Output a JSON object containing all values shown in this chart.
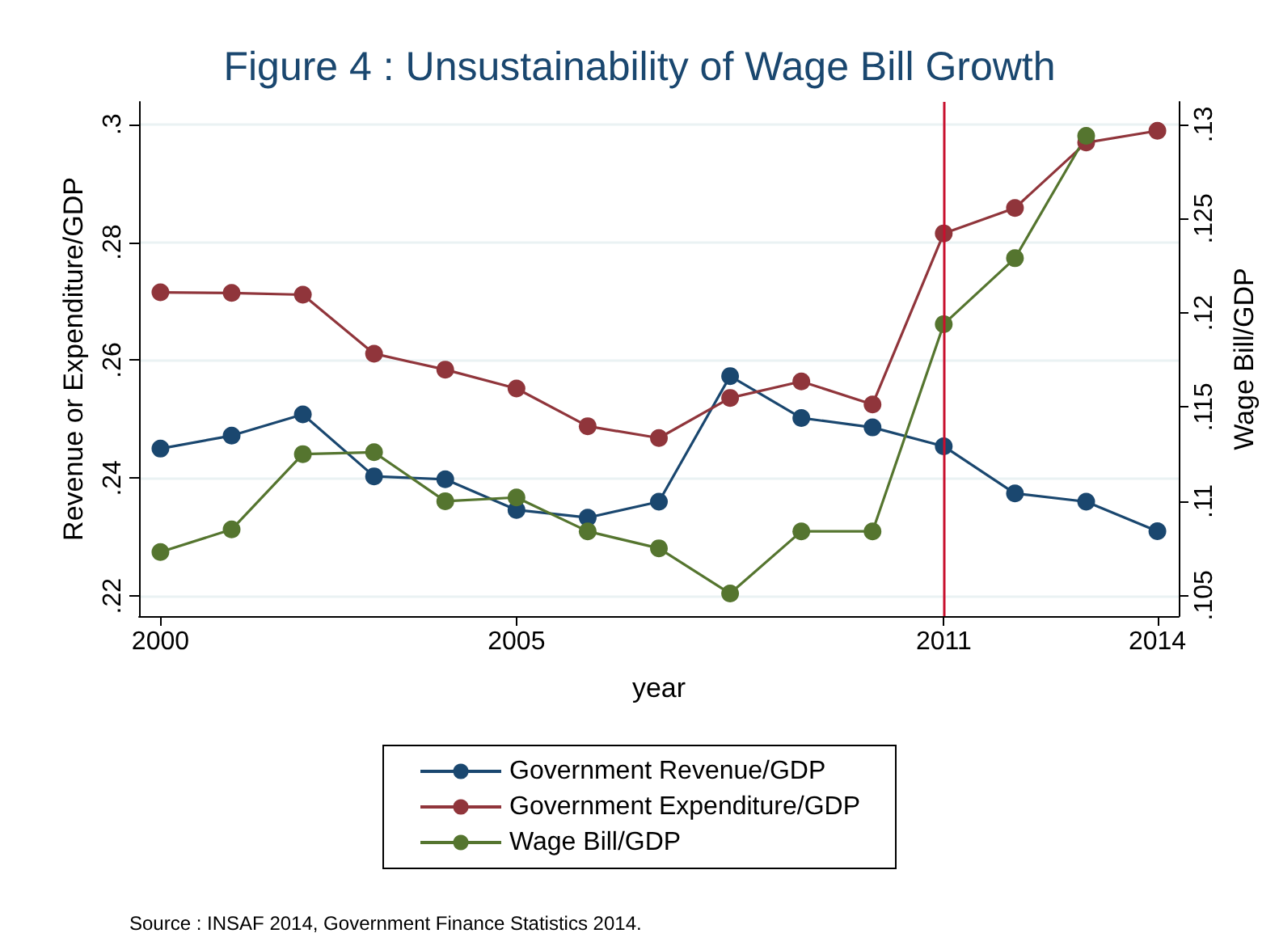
{
  "chart_data": {
    "type": "line",
    "title": "Figure 4 : Unsustainability of Wage Bill Growth",
    "xlabel": "year",
    "ylabel": "Revenue or Expenditure/GDP",
    "y2label": "Wage Bill/GDP",
    "x": [
      2000,
      2001,
      2002,
      2003,
      2004,
      2005,
      2006,
      2007,
      2008,
      2009,
      2010,
      2011,
      2012,
      2013,
      2014
    ],
    "series": [
      {
        "name": "Government Revenue/GDP",
        "color": "#1a476f",
        "values": [
          0.245,
          0.2472,
          0.2508,
          0.2403,
          0.2398,
          0.2346,
          0.2333,
          0.236,
          0.2573,
          0.2502,
          0.2486,
          0.2454,
          0.2374,
          0.236,
          0.231
        ]
      },
      {
        "name": "Government Expenditure/GDP",
        "color": "#90353b",
        "values": [
          0.2715,
          0.2714,
          0.2711,
          0.2611,
          0.2584,
          0.2552,
          0.2488,
          0.2468,
          0.2536,
          0.2564,
          0.2525,
          0.2815,
          0.2858,
          0.2969,
          0.2989
        ]
      },
      {
        "name": "Wage Bill/GDP",
        "color": "#55752f",
        "axis": "y2",
        "values": [
          0.1073,
          0.1085,
          0.1125,
          0.1126,
          0.11,
          0.1102,
          0.1084,
          0.1075,
          0.1051,
          0.1084,
          0.1084,
          0.1194,
          0.1229,
          0.1294,
          null
        ]
      }
    ],
    "xlim": [
      1999.7,
      2014.3
    ],
    "xticks": [
      2000,
      2005,
      2011,
      2014
    ],
    "ylim": [
      0.2166,
      0.3038
    ],
    "yticks": [
      {
        "value": 0.22,
        "label": ".22"
      },
      {
        "value": 0.24,
        "label": ".24"
      },
      {
        "value": 0.26,
        "label": ".26"
      },
      {
        "value": 0.28,
        "label": ".28"
      },
      {
        "value": 0.3,
        "label": ".3"
      }
    ],
    "y2lim": [
      0.1039,
      0.1312
    ],
    "y2ticks": [
      {
        "value": 0.105,
        "label": ".105"
      },
      {
        "value": 0.11,
        "label": ".11"
      },
      {
        "value": 0.115,
        "label": ".115"
      },
      {
        "value": 0.12,
        "label": ".12"
      },
      {
        "value": 0.125,
        "label": ".125"
      },
      {
        "value": 0.13,
        "label": ".13"
      }
    ],
    "ref_lines": [
      {
        "axis": "x",
        "value": 2011,
        "color": "#c8102e"
      }
    ],
    "grid": "y",
    "legend": "bottom",
    "marker": "circle",
    "line_style": "solid",
    "annotations": [
      "Source : INSAF 2014, Government Finance Statistics 2014."
    ]
  }
}
